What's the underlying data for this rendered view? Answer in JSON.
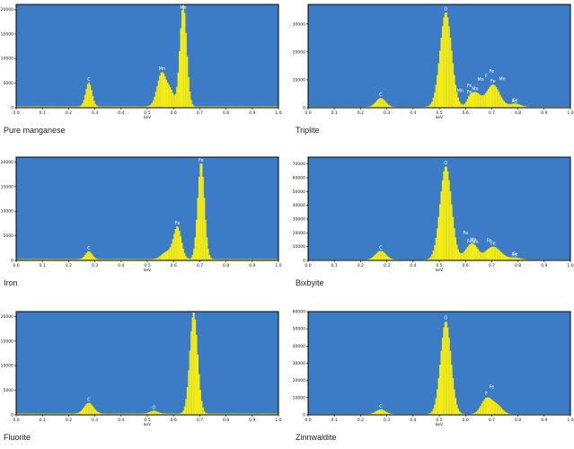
{
  "colors": {
    "plot_bg": "#3c7cc6",
    "bars": "#f4ec12",
    "bar_edge": "#dcd300",
    "frame": "#000000"
  },
  "chart_data": [
    {
      "type": "bar",
      "title": "Pure manganese",
      "xlabel": "keV",
      "ylabel": "",
      "xlim": [
        0,
        1.0
      ],
      "ylim": [
        0,
        21000
      ],
      "yticks": [
        0,
        5000,
        10000,
        15000,
        20000
      ],
      "xticks": [
        0.0,
        0.1,
        0.2,
        0.3,
        0.4,
        0.5,
        0.6,
        0.7,
        0.8,
        0.9,
        1.0
      ],
      "xtick_labels": [
        "0.0",
        "0.1",
        "0.2",
        "0.3",
        "0.4",
        "0.5",
        "0.6",
        "0.7",
        "0.8",
        "0.9",
        "1.0"
      ],
      "ytick_labels": [
        "0",
        "5000",
        "10000",
        "15000",
        "20000"
      ],
      "baseline": 250,
      "peaks": [
        {
          "label": "C",
          "x": 0.277,
          "height": 4900,
          "width": 0.012
        },
        {
          "label": "Mn",
          "x": 0.556,
          "height": 7000,
          "width": 0.018
        },
        {
          "label": "Mn",
          "x": 0.637,
          "height": 20800,
          "width": 0.013
        },
        {
          "label": "",
          "x": 0.59,
          "height": 2500,
          "width": 0.012
        }
      ]
    },
    {
      "type": "bar",
      "title": "Triplite",
      "xlabel": "keV",
      "ylabel": "",
      "xlim": [
        0,
        1.0
      ],
      "ylim": [
        0,
        37000
      ],
      "yticks": [
        0,
        10000,
        20000,
        30000
      ],
      "xticks": [
        0.0,
        0.1,
        0.2,
        0.3,
        0.4,
        0.5,
        0.6,
        0.7,
        0.8,
        0.9,
        1.0
      ],
      "xtick_labels": [
        "0.0",
        "0.1",
        "0.2",
        "0.3",
        "0.4",
        "0.5",
        "0.6",
        "0.7",
        "0.8",
        "0.9",
        "1.0"
      ],
      "ytick_labels": [
        "0",
        "10000",
        "20000",
        "30000"
      ],
      "baseline": 300,
      "peaks": [
        {
          "label": "C",
          "x": 0.277,
          "height": 3200,
          "width": 0.018
        },
        {
          "label": "O",
          "x": 0.525,
          "height": 34000,
          "width": 0.022
        },
        {
          "label": "Mn",
          "x": 0.637,
          "height": 5000,
          "width": 0.02
        },
        {
          "label": "Fe",
          "x": 0.705,
          "height": 8000,
          "width": 0.025
        },
        {
          "label": "Fe",
          "x": 0.615,
          "height": 1500,
          "width": 0.01
        },
        {
          "label": "Fe",
          "x": 0.79,
          "height": 1200,
          "width": 0.02
        }
      ],
      "extra_labels": [
        {
          "text": "Fe",
          "x": 0.7,
          "y": 12500
        },
        {
          "text": "Mn",
          "x": 0.74,
          "y": 9800
        },
        {
          "text": "Fe",
          "x": 0.615,
          "y": 7400
        },
        {
          "text": "Mn",
          "x": 0.658,
          "y": 9600
        },
        {
          "text": "Fe",
          "x": 0.785,
          "y": 1800
        },
        {
          "text": "F",
          "x": 0.68,
          "y": 10700
        },
        {
          "text": "Mn",
          "x": 0.58,
          "y": 5700
        }
      ]
    },
    {
      "type": "bar",
      "title": "Iron",
      "xlabel": "keV",
      "ylabel": "",
      "xlim": [
        0,
        1.0
      ],
      "ylim": [
        0,
        21000
      ],
      "yticks": [
        0,
        5000,
        10000,
        15000,
        20000
      ],
      "xticks": [
        0.0,
        0.1,
        0.2,
        0.3,
        0.4,
        0.5,
        0.6,
        0.7,
        0.8,
        0.9,
        1.0
      ],
      "xtick_labels": [
        "0.0",
        "0.1",
        "0.2",
        "0.3",
        "0.4",
        "0.5",
        "0.6",
        "0.7",
        "0.8",
        "0.9",
        "1.0"
      ],
      "ytick_labels": [
        "0",
        "5000",
        "10000",
        "15000",
        "20000"
      ],
      "baseline": 250,
      "peaks": [
        {
          "label": "C",
          "x": 0.277,
          "height": 1600,
          "width": 0.013
        },
        {
          "label": "Fe",
          "x": 0.615,
          "height": 6500,
          "width": 0.015
        },
        {
          "label": "Fe",
          "x": 0.705,
          "height": 19800,
          "width": 0.013
        },
        {
          "label": "",
          "x": 0.575,
          "height": 1500,
          "width": 0.02
        }
      ]
    },
    {
      "type": "bar",
      "title": "Bixbyite",
      "xlabel": "keV",
      "ylabel": "",
      "xlim": [
        0,
        1.0
      ],
      "ylim": [
        0,
        75000
      ],
      "yticks": [
        0,
        10000,
        20000,
        30000,
        40000,
        50000,
        60000,
        70000
      ],
      "xticks": [
        0.0,
        0.1,
        0.2,
        0.3,
        0.4,
        0.5,
        0.6,
        0.7,
        0.8,
        0.9,
        1.0
      ],
      "xtick_labels": [
        "0.0",
        "0.1",
        "0.2",
        "0.3",
        "0.4",
        "0.5",
        "0.6",
        "0.7",
        "0.8",
        "0.9",
        "1.0"
      ],
      "ytick_labels": [
        "0",
        "10000",
        "20000",
        "30000",
        "40000",
        "50000",
        "60000",
        "70000"
      ],
      "baseline": 500,
      "peaks": [
        {
          "label": "C",
          "x": 0.277,
          "height": 6500,
          "width": 0.02
        },
        {
          "label": "O",
          "x": 0.525,
          "height": 68000,
          "width": 0.022
        },
        {
          "label": "Fe",
          "x": 0.615,
          "height": 9000,
          "width": 0.02
        },
        {
          "label": "Fe",
          "x": 0.705,
          "height": 9500,
          "width": 0.03
        },
        {
          "label": "Mn",
          "x": 0.637,
          "height": 5000,
          "width": 0.015
        },
        {
          "label": "Fe",
          "x": 0.79,
          "height": 1500,
          "width": 0.02
        }
      ],
      "extra_labels": [
        {
          "text": "Fe",
          "x": 0.6,
          "y": 19000
        },
        {
          "text": "Mn",
          "x": 0.63,
          "y": 14000
        },
        {
          "text": "Fe",
          "x": 0.69,
          "y": 13500
        },
        {
          "text": "Fe",
          "x": 0.785,
          "y": 3000
        }
      ]
    },
    {
      "type": "bar",
      "title": "Fluorite",
      "xlabel": "keV",
      "ylabel": "",
      "xlim": [
        0,
        1.0
      ],
      "ylim": [
        0,
        21000
      ],
      "yticks": [
        0,
        5000,
        10000,
        15000,
        20000
      ],
      "xticks": [
        0.0,
        0.1,
        0.2,
        0.3,
        0.4,
        0.5,
        0.6,
        0.7,
        0.8,
        0.9,
        1.0
      ],
      "xtick_labels": [
        "0.0",
        "0.1",
        "0.2",
        "0.3",
        "0.4",
        "0.5",
        "0.6",
        "0.7",
        "0.8",
        "0.9",
        "1.0"
      ],
      "ytick_labels": [
        "0",
        "5000",
        "10000",
        "15000",
        "20000"
      ],
      "baseline": 250,
      "peaks": [
        {
          "label": "C",
          "x": 0.277,
          "height": 2200,
          "width": 0.018
        },
        {
          "label": "O",
          "x": 0.525,
          "height": 600,
          "width": 0.015
        },
        {
          "label": "F",
          "x": 0.677,
          "height": 20500,
          "width": 0.015
        }
      ]
    },
    {
      "type": "bar",
      "title": "Zinnwaldite",
      "xlabel": "keV",
      "ylabel": "",
      "xlim": [
        0,
        1.0
      ],
      "ylim": [
        0,
        60000
      ],
      "yticks": [
        0,
        10000,
        20000,
        30000,
        40000,
        50000,
        60000
      ],
      "xticks": [
        0.0,
        0.1,
        0.2,
        0.3,
        0.4,
        0.5,
        0.6,
        0.7,
        0.8,
        0.9,
        1.0
      ],
      "xtick_labels": [
        "0.0",
        "0.1",
        "0.2",
        "0.3",
        "0.4",
        "0.5",
        "0.6",
        "0.7",
        "0.8",
        "0.9",
        "1.0"
      ],
      "ytick_labels": [
        "0",
        "10000",
        "20000",
        "30000",
        "40000",
        "50000",
        "60000"
      ],
      "baseline": 400,
      "peaks": [
        {
          "label": "C",
          "x": 0.277,
          "height": 2800,
          "width": 0.018
        },
        {
          "label": "O",
          "x": 0.525,
          "height": 54000,
          "width": 0.02
        },
        {
          "label": "",
          "x": 0.68,
          "height": 9000,
          "width": 0.02
        },
        {
          "label": "",
          "x": 0.72,
          "height": 5000,
          "width": 0.02
        }
      ],
      "extra_labels": [
        {
          "text": "Fe",
          "x": 0.7,
          "y": 15500
        },
        {
          "text": "F",
          "x": 0.68,
          "y": 11500
        }
      ]
    }
  ]
}
